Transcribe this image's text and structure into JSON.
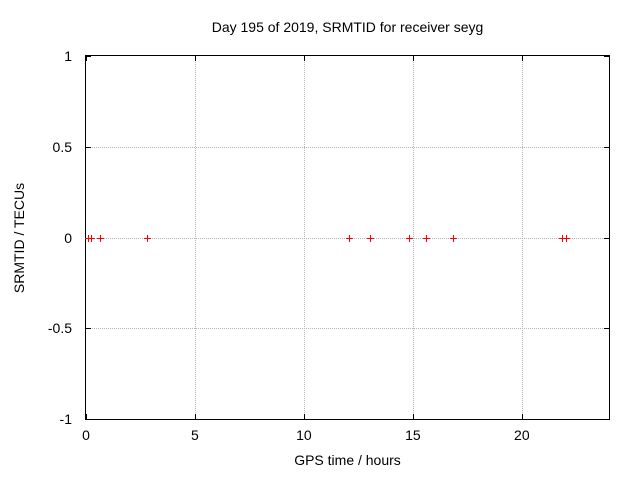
{
  "page": {
    "background": "#ffffff"
  },
  "chart_data": {
    "type": "scatter",
    "title": "Day 195 of 2019, SRMTID for receiver seyg",
    "xlabel": "GPS time / hours",
    "ylabel": "SRMTID / TECUs",
    "xlim": [
      0,
      24
    ],
    "ylim": [
      -1,
      1
    ],
    "x_ticks": [
      0,
      5,
      10,
      15,
      20
    ],
    "y_ticks": [
      1,
      0.5,
      0,
      -0.5,
      -1
    ],
    "grid": true,
    "legend": "none",
    "marker": "plus",
    "marker_color": "#ff0000",
    "grid_color": "#b5b5b5",
    "axis_color": "#000000",
    "series": [
      {
        "name": "SRMTID",
        "x": [
          0.1,
          0.25,
          0.65,
          2.78,
          12.08,
          13.05,
          14.8,
          15.6,
          16.83,
          21.85,
          22.03
        ],
        "y": [
          0,
          0,
          0,
          0,
          0,
          0,
          0,
          0,
          0,
          0,
          0
        ]
      }
    ]
  }
}
